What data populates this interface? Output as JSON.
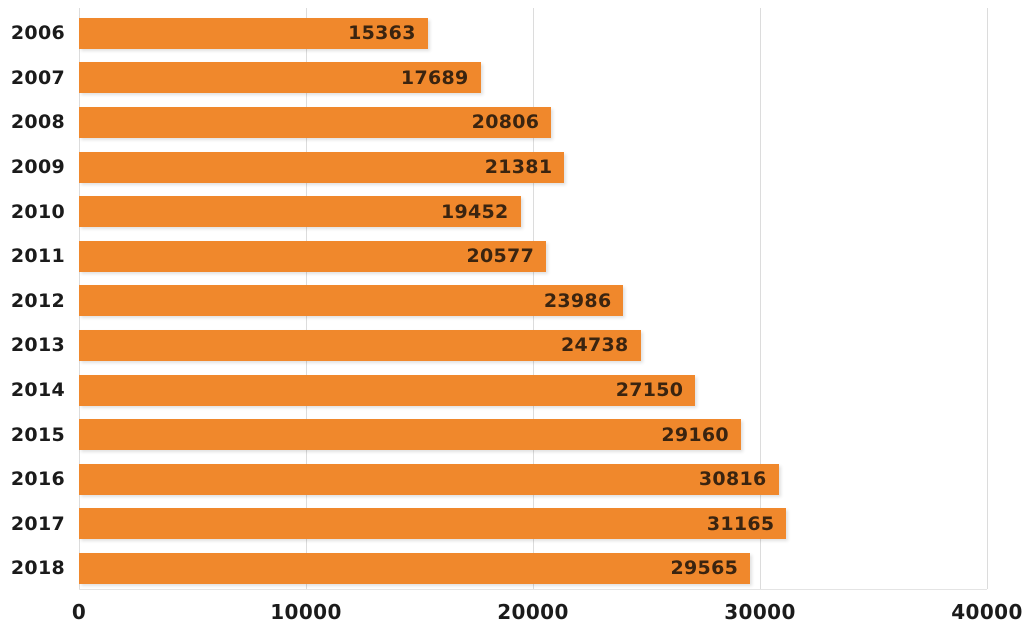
{
  "chart_data": {
    "type": "bar",
    "orientation": "horizontal",
    "title": "",
    "xlabel": "",
    "ylabel": "",
    "categories": [
      "2006",
      "2007",
      "2008",
      "2009",
      "2010",
      "2011",
      "2012",
      "2013",
      "2014",
      "2015",
      "2016",
      "2017",
      "2018"
    ],
    "values": [
      15363,
      17689,
      20806,
      21381,
      19452,
      20577,
      23986,
      24738,
      27150,
      29160,
      30816,
      31165,
      29565
    ],
    "value_labels": [
      "15363",
      "17689",
      "20806",
      "21381",
      "19452",
      "20577",
      "23986",
      "24738",
      "27150",
      "29160",
      "30816",
      "31165",
      "29565"
    ],
    "xlim": [
      0,
      40000
    ],
    "x_ticks": [
      0,
      10000,
      20000,
      30000,
      40000
    ],
    "x_tick_labels": [
      "0",
      "10000",
      "20000",
      "30000",
      "40000"
    ],
    "grid": "vertical",
    "legend": "none",
    "colors": {
      "bar": "#F0882C",
      "value_label": "#3A2410",
      "axis_text": "#1B1B1B",
      "gridline": "#DCDCDC"
    }
  }
}
